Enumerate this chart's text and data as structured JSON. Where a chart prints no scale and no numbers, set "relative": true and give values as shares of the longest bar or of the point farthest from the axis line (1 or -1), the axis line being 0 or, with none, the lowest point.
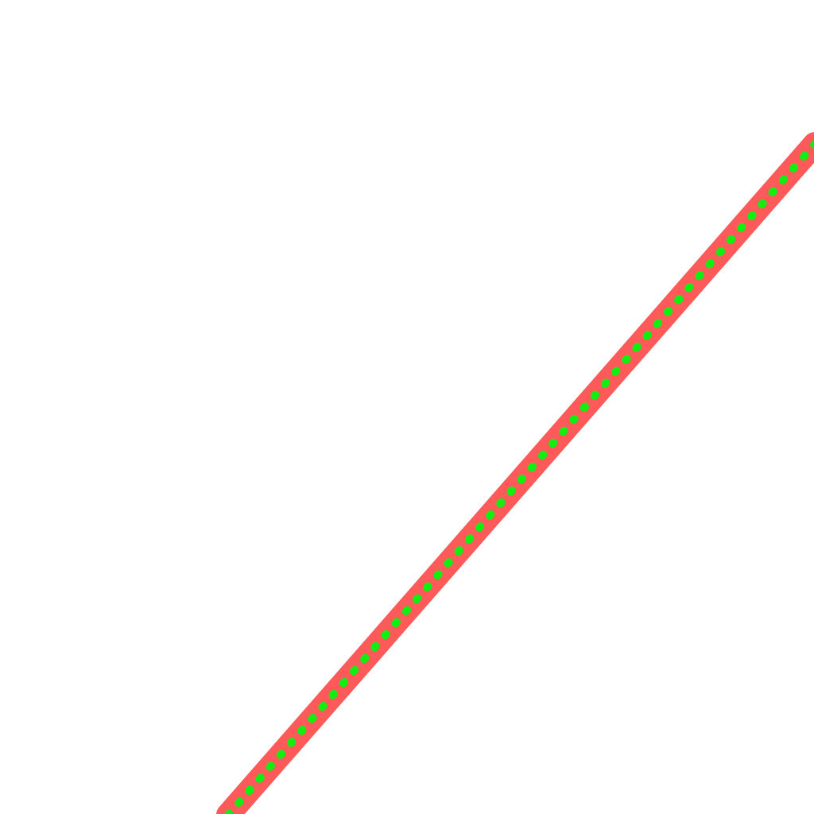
{
  "chart_data": {
    "type": "line",
    "relative": true,
    "categories": [
      null,
      null,
      null,
      null,
      null
    ],
    "series": [
      {
        "color": "#ff5a5a",
        "line_style": "solid",
        "values": [
          0,
          0.25,
          0.5,
          0.75,
          1
        ]
      },
      {
        "color": "#11ee11",
        "line_style": "dotted",
        "values": [
          0,
          0.25,
          0.5,
          0.75,
          1
        ]
      }
    ]
  }
}
